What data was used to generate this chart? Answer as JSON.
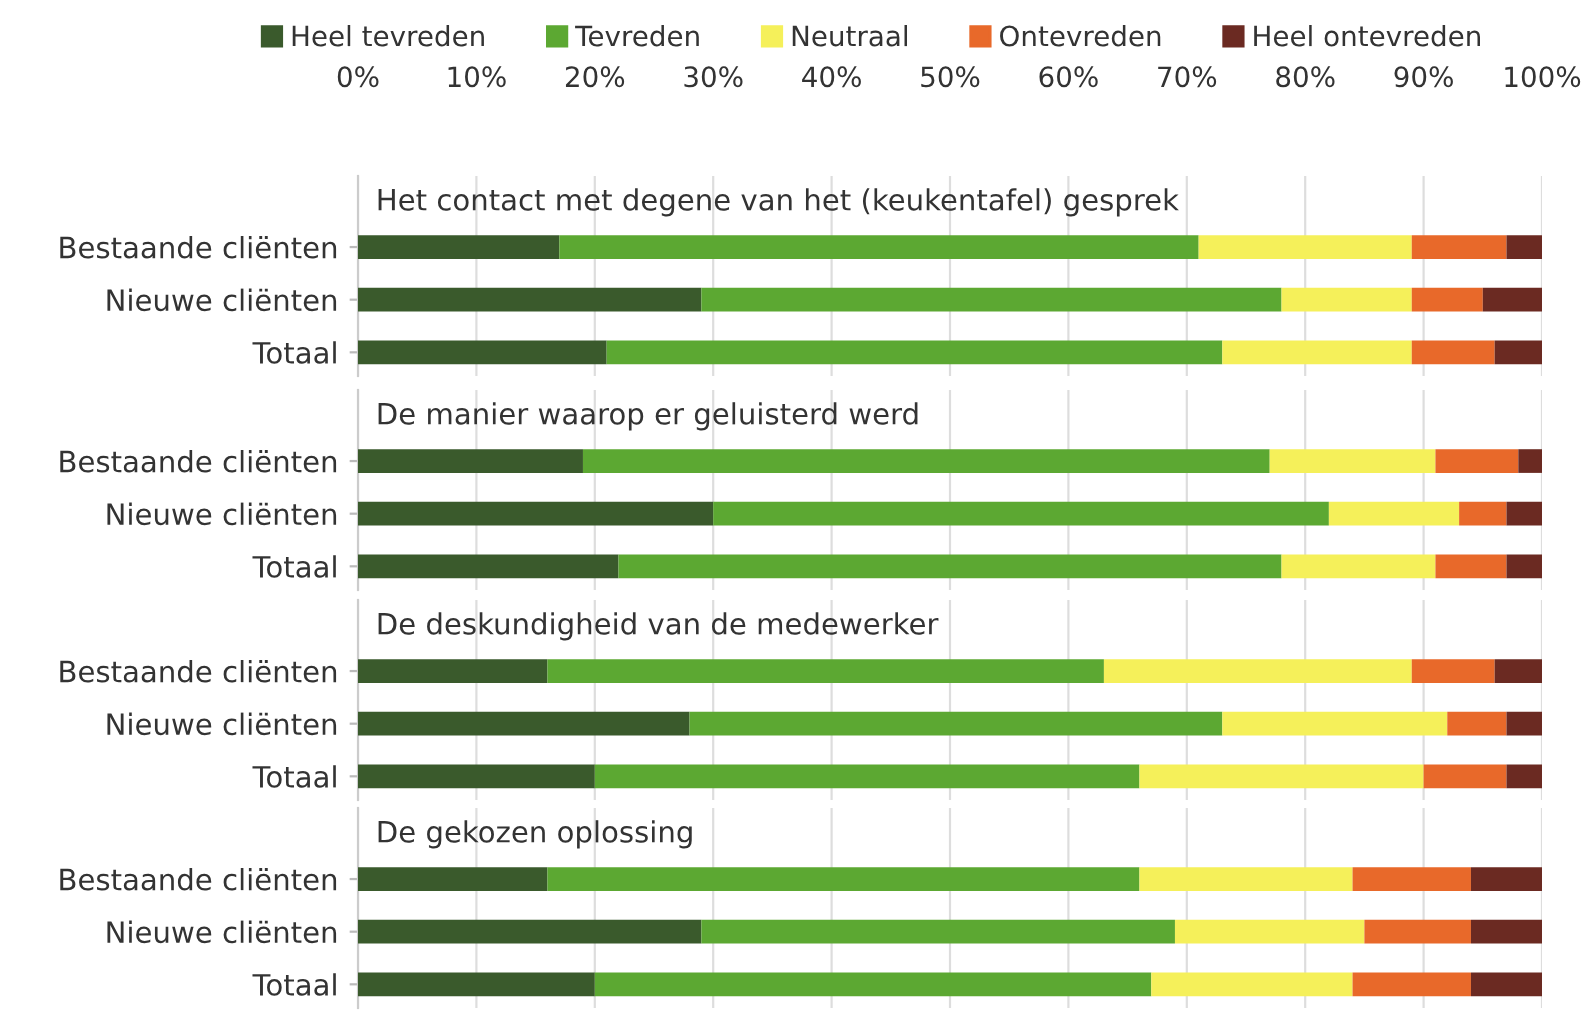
{
  "chart_data": [
    {
      "type": "bar",
      "orientation": "horizontal",
      "stacked": true,
      "title": "Het contact met degene van het (keukentafel) gesprek",
      "categories": [
        "Bestaande cliënten",
        "Nieuwe cliënten",
        "Totaal"
      ],
      "series": [
        {
          "name": "Heel tevreden",
          "color": "#3a5a2c",
          "values": [
            17,
            29,
            21
          ]
        },
        {
          "name": "Tevreden",
          "color": "#5ca832",
          "values": [
            54,
            49,
            52
          ]
        },
        {
          "name": "Neutraal",
          "color": "#f5f05a",
          "values": [
            18,
            11,
            16
          ]
        },
        {
          "name": "Ontevreden",
          "color": "#e8692a",
          "values": [
            8,
            6,
            7
          ]
        },
        {
          "name": "Heel ontevreden",
          "color": "#6b2a22",
          "values": [
            3,
            5,
            4
          ]
        }
      ],
      "xlim": [
        0,
        100
      ],
      "xticks": [
        {
          "value": 0,
          "label": "0%"
        },
        {
          "value": 10,
          "label": "10%"
        },
        {
          "value": 20,
          "label": "20%"
        },
        {
          "value": 30,
          "label": "30%"
        },
        {
          "value": 40,
          "label": "40%"
        },
        {
          "value": 50,
          "label": "50%"
        },
        {
          "value": 60,
          "label": "60%"
        },
        {
          "value": 70,
          "label": "70%"
        },
        {
          "value": 80,
          "label": "80%"
        },
        {
          "value": 90,
          "label": "90%"
        },
        {
          "value": 100,
          "label": "100%"
        }
      ],
      "grid": "x",
      "legend": "top"
    },
    {
      "type": "bar",
      "orientation": "horizontal",
      "stacked": true,
      "title": "De manier waarop er geluisterd werd",
      "categories": [
        "Bestaande cliënten",
        "Nieuwe cliënten",
        "Totaal"
      ],
      "series": [
        {
          "color": "#3a5a2c",
          "values": [
            19,
            30,
            22
          ]
        },
        {
          "color": "#5ca832",
          "values": [
            58,
            52,
            56
          ]
        },
        {
          "color": "#f5f05a",
          "values": [
            14,
            11,
            13
          ]
        },
        {
          "color": "#e8692a",
          "values": [
            7,
            4,
            6
          ]
        },
        {
          "color": "#6b2a22",
          "values": [
            2,
            3,
            3
          ]
        }
      ],
      "xlim": [
        0,
        100
      ],
      "xticks": [
        0,
        10,
        20,
        30,
        40,
        50,
        60,
        70,
        80,
        90,
        100
      ],
      "grid": "x",
      "tick_labels": "y"
    },
    {
      "type": "bar",
      "orientation": "horizontal",
      "stacked": true,
      "title": "De deskundigheid van de medewerker",
      "categories": [
        "Bestaande cliënten",
        "Nieuwe cliënten",
        "Totaal"
      ],
      "series": [
        {
          "color": "#3a5a2c",
          "values": [
            16,
            28,
            20
          ]
        },
        {
          "color": "#5ca832",
          "values": [
            47,
            45,
            46
          ]
        },
        {
          "color": "#f5f05a",
          "values": [
            26,
            19,
            24
          ]
        },
        {
          "color": "#e8692a",
          "values": [
            7,
            5,
            7
          ]
        },
        {
          "color": "#6b2a22",
          "values": [
            4,
            3,
            3
          ]
        }
      ],
      "xlim": [
        0,
        100
      ],
      "xticks": [
        0,
        10,
        20,
        30,
        40,
        50,
        60,
        70,
        80,
        90,
        100
      ],
      "grid": "x",
      "tick_labels": "y"
    },
    {
      "type": "bar",
      "orientation": "horizontal",
      "stacked": true,
      "title": "De gekozen oplossing",
      "categories": [
        "Bestaande cliënten",
        "Nieuwe cliënten",
        "Totaal"
      ],
      "series": [
        {
          "color": "#3a5a2c",
          "values": [
            16,
            29,
            20
          ]
        },
        {
          "color": "#5ca832",
          "values": [
            50,
            40,
            47
          ]
        },
        {
          "color": "#f5f05a",
          "values": [
            18,
            16,
            17
          ]
        },
        {
          "color": "#e8692a",
          "values": [
            10,
            9,
            10
          ]
        },
        {
          "color": "#6b2a22",
          "values": [
            6,
            6,
            6
          ]
        }
      ],
      "xlim": [
        0,
        100
      ],
      "xticks": [
        0,
        10,
        20,
        30,
        40,
        50,
        60,
        70,
        80,
        90,
        100
      ],
      "grid": "x",
      "tick_labels": "y"
    }
  ]
}
